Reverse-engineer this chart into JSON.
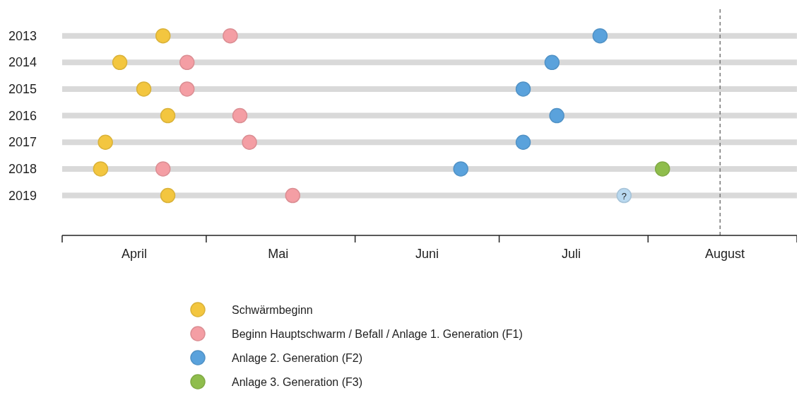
{
  "chart_data": {
    "type": "scatter",
    "xlim": [
      "--04-01",
      "--09-01"
    ],
    "xticks": [
      {
        "value": "--04-01",
        "label": null
      },
      {
        "value": "--04-16",
        "label": "April"
      },
      {
        "value": "--05-01",
        "label": null
      },
      {
        "value": "--05-16",
        "label": "Mai"
      },
      {
        "value": "--06-01",
        "label": null
      },
      {
        "value": "--06-16",
        "label": "Juni"
      },
      {
        "value": "--07-01",
        "label": null
      },
      {
        "value": "--07-16",
        "label": "Juli"
      },
      {
        "value": "--08-01",
        "label": null
      },
      {
        "value": "--08-17",
        "label": "August"
      },
      {
        "value": "--09-01",
        "label": null
      }
    ],
    "ylim": [
      2020.5,
      2012
    ],
    "yticks": [
      2013,
      2014,
      2015,
      2016,
      2017,
      2018,
      2019
    ],
    "grid": "y",
    "legend": "bottom",
    "marker": "circle",
    "series": [
      {
        "name": "Schwärmbeginn",
        "color": "#f3c63f",
        "x": [
          "--04-22",
          "--04-13",
          "--04-18",
          "--04-23",
          "--04-10",
          "--04-09",
          "--04-23"
        ],
        "values": [
          2013,
          2014,
          2015,
          2016,
          2017,
          2018,
          2019
        ]
      },
      {
        "name": "Beginn Hauptschwarm / Befall / Anlage 1. Generation (F1)",
        "color": "#f49ea4",
        "x": [
          "--05-06",
          "--04-27",
          "--04-27",
          "--05-08",
          "--05-10",
          "--04-22",
          "--05-19"
        ],
        "values": [
          2013,
          2014,
          2015,
          2016,
          2017,
          2018,
          2019
        ]
      },
      {
        "name": "Anlage 2. Generation (F2)",
        "color": "#5aa2dc",
        "colors": [
          "#5aa2dc",
          "#5aa2dc",
          "#5aa2dc",
          "#5aa2dc",
          "#5aa2dc",
          "#5aa2dc",
          "#b9d9f0"
        ],
        "x": [
          "--07-22",
          "--07-12",
          "--07-06",
          "--07-13",
          "--07-06",
          "--06-23",
          "--07-27"
        ],
        "values": [
          2013,
          2014,
          2015,
          2016,
          2017,
          2018,
          2019
        ]
      },
      {
        "name": "Anlage 3. Generation (F3)",
        "color": "#8fbd4c",
        "x": [
          "--08-04"
        ],
        "values": [
          2018
        ]
      }
    ],
    "ref_lines": [
      {
        "axis": "x",
        "value": "--08-16",
        "color": "#777777",
        "line_style": "dashed"
      }
    ],
    "annotations": [
      {
        "text": "?",
        "x": "--07-27",
        "y": 2019
      }
    ]
  }
}
